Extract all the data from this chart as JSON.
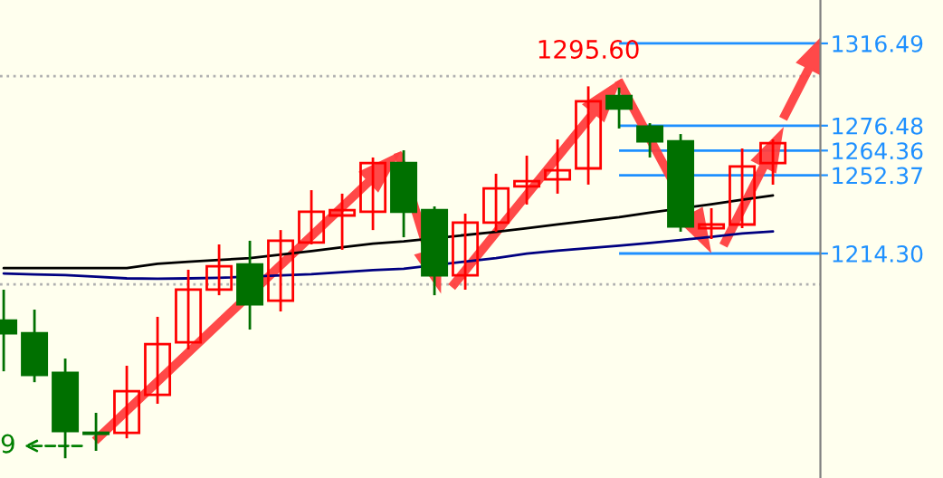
{
  "chart_data": {
    "type": "candlestick",
    "categories": [
      null,
      null,
      null,
      null,
      null,
      null,
      null,
      null,
      null,
      null,
      null,
      null,
      null,
      null,
      null,
      null,
      null,
      null,
      null,
      null,
      null,
      null,
      null,
      null,
      null,
      null
    ],
    "ohlc": [
      [
        1181.7,
        1196.7,
        1157.0,
        1175.5
      ],
      [
        1175.5,
        1187.0,
        1151.7,
        1155.3
      ],
      [
        1156.2,
        1163.2,
        1114.7,
        1127.9
      ],
      [
        1127.1,
        1136.8,
        1118.3,
        1126.6
      ],
      [
        1127.1,
        1159.7,
        1124.4,
        1147.3
      ],
      [
        1145.6,
        1183.5,
        1141.2,
        1170.2
      ],
      [
        1171.1,
        1206.4,
        1167.6,
        1196.7
      ],
      [
        1196.7,
        1218.7,
        1194.0,
        1208.1
      ],
      [
        1209.0,
        1220.5,
        1177.3,
        1189.6
      ],
      [
        1191.4,
        1225.7,
        1186.1,
        1220.5
      ],
      [
        1219.6,
        1245.1,
        1218.7,
        1234.6
      ],
      [
        1232.8,
        1243.4,
        1216.1,
        1235.4
      ],
      [
        1234.6,
        1261.0,
        1225.7,
        1258.3
      ],
      [
        1258.3,
        1264.5,
        1222.2,
        1234.6
      ],
      [
        1235.4,
        1237.2,
        1194.0,
        1203.7
      ],
      [
        1203.7,
        1233.7,
        1196.7,
        1229.3
      ],
      [
        1229.3,
        1253.1,
        1224.9,
        1246.0
      ],
      [
        1246.9,
        1261.9,
        1238.1,
        1249.5
      ],
      [
        1250.4,
        1269.8,
        1243.4,
        1254.8
      ],
      [
        1255.7,
        1295.6,
        1247.8,
        1288.3
      ],
      [
        1290.9,
        1295.0,
        1275.1,
        1284.8
      ],
      [
        1276.0,
        1277.7,
        1261.0,
        1268.9
      ],
      [
        1268.9,
        1272.4,
        1224.9,
        1227.5
      ],
      [
        1226.6,
        1236.3,
        1221.3,
        1228.4
      ],
      [
        1228.4,
        1265.4,
        1226.6,
        1256.6
      ],
      [
        1258.3,
        1269.8,
        1247.8,
        1268.0
      ]
    ],
    "colors": [
      "#007000",
      "#007000",
      "#007000",
      "#007000",
      "#ff0000",
      "#ff0000",
      "#ff0000",
      "#ff0000",
      "#007000",
      "#ff0000",
      "#ff0000",
      "#ff0000",
      "#ff0000",
      "#007000",
      "#007000",
      "#ff0000",
      "#ff0000",
      "#ff0000",
      "#ff0000",
      "#ff0000",
      "#007000",
      "#007000",
      "#007000",
      "#ff0000",
      "#ff0000",
      "#ff0000"
    ],
    "series": [
      {
        "type": "line",
        "color": "#000000",
        "values": [
          1207.2,
          1207.2,
          1207.2,
          1207.2,
          1207.2,
          1209.3,
          1210.3,
          1211.2,
          1212.0,
          null,
          1215.5,
          1217.3,
          1219.1,
          1220.2,
          null,
          null,
          1224.8,
          1226.6,
          1228.4,
          1230.2,
          1232.0,
          1234.2,
          null,
          1238.2,
          1240.5,
          1242.5
        ]
      },
      {
        "type": "line",
        "color": "#000080",
        "values": [
          1204.6,
          1204.1,
          1203.8,
          1203.0,
          1202.2,
          1202.0,
          1202.2,
          1202.5,
          null,
          null,
          1204.2,
          1205.2,
          1206.2,
          1206.9,
          null,
          null,
          1212.1,
          1214.2,
          1215.7,
          1216.9,
          1218.1,
          1219.4,
          1220.9,
          1222.4,
          1224.0,
          1225.0
        ]
      }
    ],
    "ylim": [
      1105.1,
      1337.6
    ],
    "yticks": [
      1316.49,
      1276.48,
      1264.36,
      1252.37,
      {
        "value": 1214.3,
        "label": "1214.30"
      }
    ],
    "ref_lines": [
      {
        "axis": "y",
        "value": 1316.49,
        "color": "#1e90ff"
      },
      {
        "axis": "y",
        "value": 1276.48,
        "color": "#1e90ff"
      },
      {
        "axis": "y",
        "value": 1264.36,
        "color": "#1e90ff"
      },
      {
        "axis": "y",
        "value": 1252.37,
        "color": "#1e90ff"
      },
      {
        "axis": "y",
        "value": 1214.3,
        "color": "#1e90ff"
      },
      {
        "axis": "y",
        "value": 1300.6,
        "color": "#b0b0b0",
        "line_style": "dotted"
      },
      {
        "axis": "y",
        "value": 1199.3,
        "color": "#b0b0b0",
        "line_style": "dotted"
      }
    ],
    "annotations": [
      {
        "text": "1295.60",
        "y": 1295.6
      },
      "9"
    ]
  }
}
